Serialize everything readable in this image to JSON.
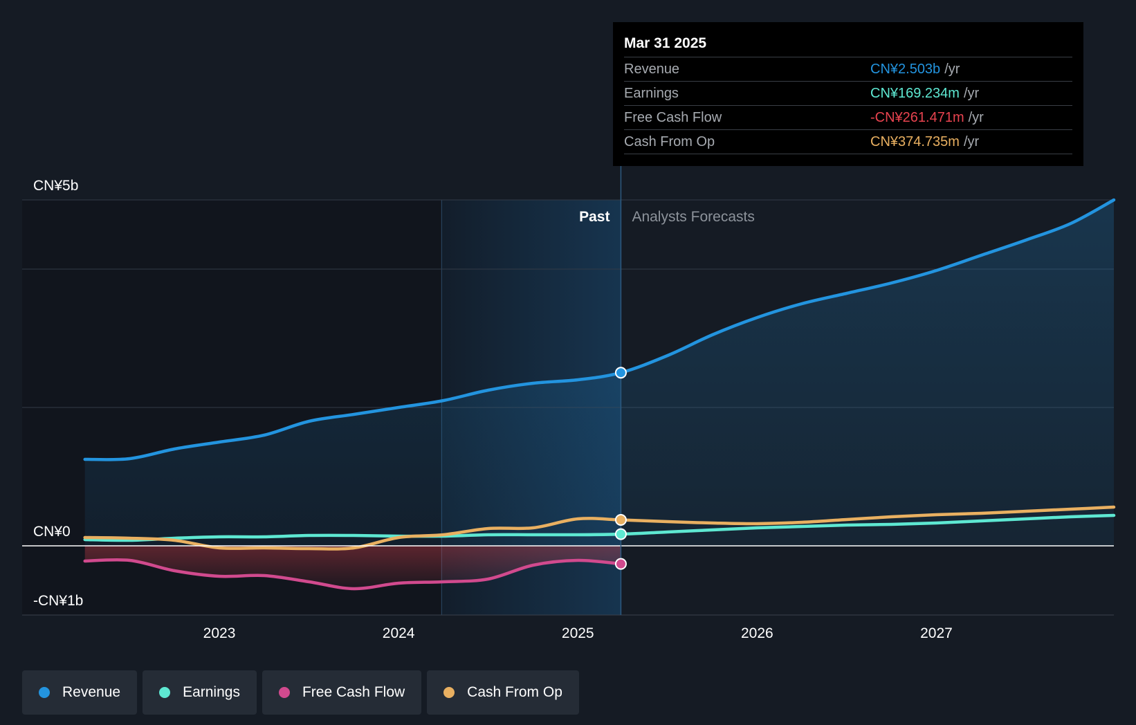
{
  "tooltip": {
    "date": "Mar 31 2025",
    "rows": [
      {
        "label": "Revenue",
        "value": "CN¥2.503b",
        "unit": "/yr",
        "color": "#2394df"
      },
      {
        "label": "Earnings",
        "value": "CN¥169.234m",
        "unit": "/yr",
        "color": "#5ee8d2"
      },
      {
        "label": "Free Cash Flow",
        "value": "-CN¥261.471m",
        "unit": "/yr",
        "color": "#e8434f"
      },
      {
        "label": "Cash From Op",
        "value": "CN¥374.735m",
        "unit": "/yr",
        "color": "#e9b061"
      }
    ]
  },
  "regions": {
    "past": "Past",
    "forecast": "Analysts Forecasts"
  },
  "legend": [
    {
      "label": "Revenue",
      "color": "#2394df"
    },
    {
      "label": "Earnings",
      "color": "#5ee8d2"
    },
    {
      "label": "Free Cash Flow",
      "color": "#d14a8e"
    },
    {
      "label": "Cash From Op",
      "color": "#e9b061"
    }
  ],
  "chart_data": {
    "type": "line",
    "title": "",
    "xlabel": "",
    "ylabel": "",
    "ylim": [
      -1,
      5
    ],
    "y_ticks": [
      {
        "value": 5,
        "label": "CN¥5b"
      },
      {
        "value": 0,
        "label": "CN¥0"
      },
      {
        "value": -1,
        "label": "-CN¥1b"
      }
    ],
    "gridlines": [
      5,
      4,
      2,
      -1
    ],
    "x_ticks": [
      {
        "value": 2023,
        "label": "2023"
      },
      {
        "value": 2024,
        "label": "2024"
      },
      {
        "value": 2025,
        "label": "2025"
      },
      {
        "value": 2026,
        "label": "2026"
      },
      {
        "value": 2027,
        "label": "2027"
      }
    ],
    "xlim": [
      2021.9,
      2027.99
    ],
    "past_cutoff": 2025.24,
    "highlight_start": 2024.24,
    "series": [
      {
        "name": "Revenue",
        "color": "#2394df",
        "fill": true,
        "x": [
          2022.25,
          2022.5,
          2022.75,
          2023.0,
          2023.25,
          2023.5,
          2023.75,
          2024.0,
          2024.25,
          2024.5,
          2024.75,
          2025.0,
          2025.24,
          2025.5,
          2025.75,
          2026.0,
          2026.25,
          2026.5,
          2026.75,
          2027.0,
          2027.25,
          2027.5,
          2027.75,
          2027.99
        ],
        "y": [
          1.25,
          1.26,
          1.4,
          1.5,
          1.6,
          1.8,
          1.9,
          2.0,
          2.1,
          2.25,
          2.35,
          2.4,
          2.503,
          2.75,
          3.05,
          3.3,
          3.5,
          3.65,
          3.8,
          3.98,
          4.2,
          4.42,
          4.66,
          5.0
        ]
      },
      {
        "name": "Earnings",
        "color": "#5ee8d2",
        "fill": false,
        "x": [
          2022.25,
          2022.5,
          2022.75,
          2023.0,
          2023.25,
          2023.5,
          2023.75,
          2024.0,
          2024.25,
          2024.5,
          2024.75,
          2025.0,
          2025.24,
          2025.5,
          2025.75,
          2026.0,
          2026.25,
          2026.5,
          2026.75,
          2027.0,
          2027.25,
          2027.5,
          2027.75,
          2027.99
        ],
        "y": [
          0.09,
          0.08,
          0.11,
          0.13,
          0.13,
          0.15,
          0.15,
          0.14,
          0.14,
          0.16,
          0.16,
          0.16,
          0.169,
          0.2,
          0.23,
          0.26,
          0.28,
          0.3,
          0.31,
          0.33,
          0.36,
          0.39,
          0.42,
          0.44
        ]
      },
      {
        "name": "Free Cash Flow",
        "color": "#d14a8e",
        "fill": true,
        "fill_color": "#e8434f",
        "x": [
          2022.25,
          2022.5,
          2022.75,
          2023.0,
          2023.25,
          2023.5,
          2023.75,
          2024.0,
          2024.25,
          2024.5,
          2024.75,
          2025.0,
          2025.24
        ],
        "y": [
          -0.22,
          -0.21,
          -0.36,
          -0.44,
          -0.43,
          -0.52,
          -0.62,
          -0.54,
          -0.52,
          -0.48,
          -0.28,
          -0.21,
          -0.261
        ]
      },
      {
        "name": "Cash From Op",
        "color": "#e9b061",
        "fill": false,
        "x": [
          2022.25,
          2022.5,
          2022.75,
          2023.0,
          2023.25,
          2023.5,
          2023.75,
          2024.0,
          2024.25,
          2024.5,
          2024.75,
          2025.0,
          2025.24,
          2025.5,
          2025.75,
          2026.0,
          2026.25,
          2026.5,
          2026.75,
          2027.0,
          2027.25,
          2027.5,
          2027.75,
          2027.99
        ],
        "y": [
          0.12,
          0.11,
          0.08,
          -0.03,
          -0.03,
          -0.04,
          -0.03,
          0.12,
          0.16,
          0.25,
          0.26,
          0.39,
          0.375,
          0.35,
          0.33,
          0.32,
          0.34,
          0.38,
          0.42,
          0.45,
          0.47,
          0.5,
          0.53,
          0.56
        ]
      }
    ]
  }
}
